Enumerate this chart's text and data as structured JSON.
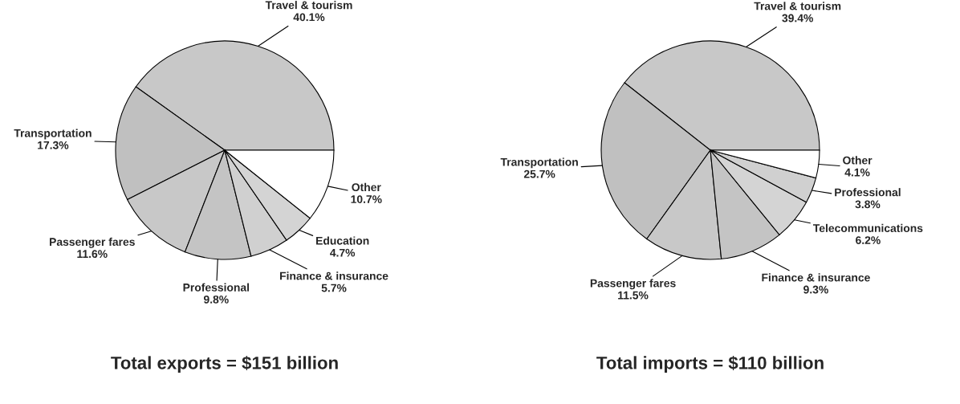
{
  "chart_data": [
    {
      "type": "pie",
      "title": "Total exports = $151 billion",
      "categories": [
        "Travel & tourism",
        "Transportation",
        "Passenger fares",
        "Professional",
        "Finance & insurance",
        "Education",
        "Other"
      ],
      "values": [
        40.1,
        17.3,
        11.6,
        9.8,
        5.7,
        4.7,
        10.7
      ],
      "value_labels": [
        "40.1%",
        "17.3%",
        "11.6%",
        "9.8%",
        "5.7%",
        "4.7%",
        "10.7%"
      ],
      "colors": [
        "#c8c8c8",
        "#c0c0c0",
        "#c8c8c8",
        "#c4c4c4",
        "#d0d0d0",
        "#d4d4d4",
        "#ffffff"
      ]
    },
    {
      "type": "pie",
      "title": "Total imports = $110 billion",
      "categories": [
        "Travel & tourism",
        "Transportation",
        "Passenger fares",
        "Finance & insurance",
        "Telecommunications",
        "Professional",
        "Other"
      ],
      "values": [
        39.4,
        25.7,
        11.5,
        9.3,
        6.2,
        3.8,
        4.1
      ],
      "value_labels": [
        "39.4%",
        "25.7%",
        "11.5%",
        "9.3%",
        "6.2%",
        "3.8%",
        "4.1%"
      ],
      "colors": [
        "#c8c8c8",
        "#c0c0c0",
        "#c8c8c8",
        "#c4c4c4",
        "#d4d4d4",
        "#d0d0d0",
        "#ffffff"
      ]
    }
  ]
}
